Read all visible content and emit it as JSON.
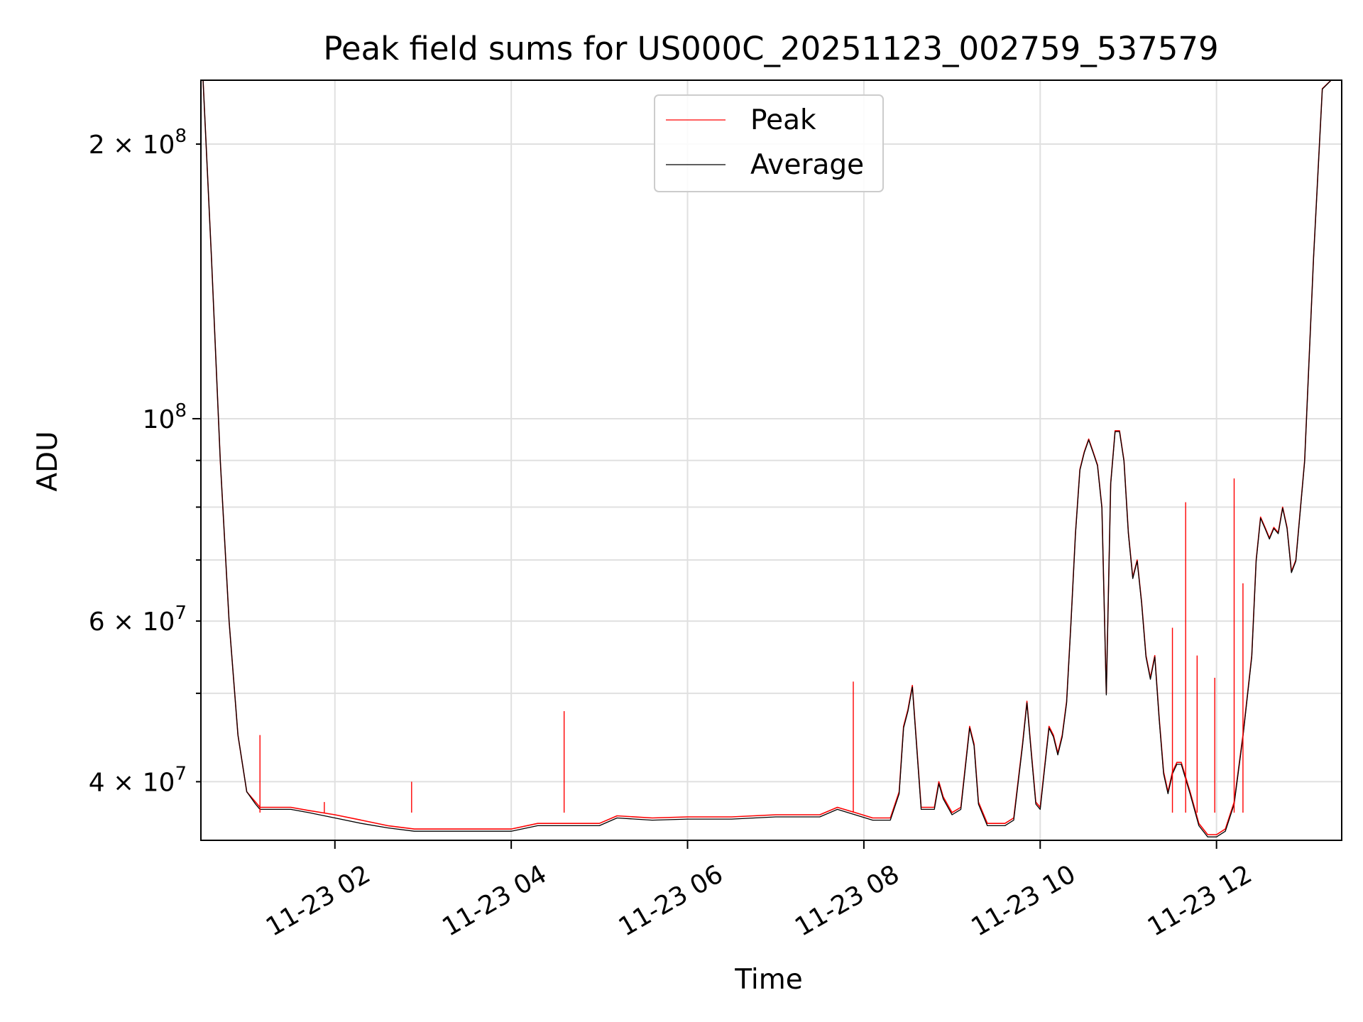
{
  "chart_data": {
    "type": "line",
    "title": "Peak field sums for US000C_20251123_002759_537579",
    "xlabel": "Time",
    "ylabel": "ADU",
    "yscale": "log",
    "ylim": [
      34500000,
      235000000
    ],
    "xlim": [
      0.48,
      13.42
    ],
    "grid": true,
    "legend_position": "top-center",
    "x_ticks": [
      {
        "value": 2,
        "label": "11-23 02"
      },
      {
        "value": 4,
        "label": "11-23 04"
      },
      {
        "value": 6,
        "label": "11-23 06"
      },
      {
        "value": 8,
        "label": "11-23 08"
      },
      {
        "value": 10,
        "label": "11-23 10"
      },
      {
        "value": 12,
        "label": "11-23 12"
      }
    ],
    "y_major_ticks": [
      {
        "value": 100000000,
        "label_base": "10",
        "label_exp": "8"
      }
    ],
    "y_minor_ticks": [
      {
        "value": 40000000,
        "label_base": "4 × 10",
        "label_exp": "7"
      },
      {
        "value": 60000000,
        "label_base": "6 × 10",
        "label_exp": "7"
      },
      {
        "value": 200000000,
        "label_base": "2 × 10",
        "label_exp": "8"
      }
    ],
    "y_minor_unlabeled": [
      50000000,
      70000000,
      80000000,
      90000000
    ],
    "series": [
      {
        "name": "Peak",
        "color": "#ff0000",
        "x": [
          0.5,
          0.6,
          0.7,
          0.8,
          0.9,
          1.0,
          1.1,
          1.15,
          1.3,
          1.5,
          1.7,
          2.0,
          2.3,
          2.6,
          2.9,
          3.2,
          3.5,
          3.8,
          4.0,
          4.3,
          4.6,
          5.0,
          5.2,
          5.6,
          6.0,
          6.5,
          7.0,
          7.5,
          7.7,
          7.9,
          8.1,
          8.3,
          8.4,
          8.45,
          8.5,
          8.55,
          8.65,
          8.8,
          8.85,
          8.9,
          9.0,
          9.1,
          9.2,
          9.25,
          9.3,
          9.4,
          9.5,
          9.6,
          9.7,
          9.8,
          9.85,
          9.9,
          9.95,
          10.0,
          10.1,
          10.15,
          10.2,
          10.25,
          10.3,
          10.35,
          10.4,
          10.45,
          10.5,
          10.55,
          10.6,
          10.65,
          10.7,
          10.75,
          10.8,
          10.85,
          10.9,
          10.95,
          11.0,
          11.05,
          11.1,
          11.15,
          11.2,
          11.25,
          11.3,
          11.35,
          11.4,
          11.45,
          11.5,
          11.55,
          11.6,
          11.7,
          11.8,
          11.9,
          12.0,
          12.1,
          12.2,
          12.3,
          12.4,
          12.45,
          12.5,
          12.55,
          12.6,
          12.65,
          12.7,
          12.75,
          12.8,
          12.85,
          12.9,
          13.0,
          13.1,
          13.2,
          13.3,
          13.4
        ],
        "y": [
          240000000,
          150000000,
          90000000,
          60000000,
          45000000,
          39000000,
          38000000,
          37500000,
          37500000,
          37500000,
          37200000,
          36800000,
          36300000,
          35800000,
          35500000,
          35500000,
          35500000,
          35500000,
          35500000,
          36000000,
          36000000,
          36000000,
          36700000,
          36500000,
          36600000,
          36600000,
          36800000,
          36800000,
          37500000,
          37000000,
          36500000,
          36500000,
          39000000,
          46000000,
          48000000,
          51000000,
          37500000,
          37500000,
          40000000,
          38500000,
          37000000,
          37500000,
          46000000,
          44000000,
          38000000,
          36000000,
          36000000,
          36000000,
          36500000,
          44000000,
          49000000,
          43000000,
          38000000,
          37500000,
          46000000,
          45000000,
          43000000,
          45000000,
          49000000,
          60000000,
          75000000,
          88000000,
          92000000,
          95000000,
          92000000,
          89000000,
          80000000,
          50000000,
          85000000,
          97000000,
          97000000,
          90000000,
          75000000,
          67000000,
          70000000,
          63000000,
          55000000,
          52000000,
          55000000,
          47000000,
          41000000,
          39000000,
          41000000,
          42000000,
          42000000,
          39000000,
          36000000,
          35000000,
          35000000,
          35500000,
          38000000,
          45000000,
          55000000,
          70000000,
          78000000,
          76000000,
          74000000,
          76000000,
          75000000,
          80000000,
          76000000,
          68000000,
          70000000,
          90000000,
          150000000,
          230000000,
          235000000,
          235000000
        ]
      },
      {
        "name": "Average",
        "color": "#000000",
        "x": [
          0.5,
          0.6,
          0.7,
          0.8,
          0.9,
          1.0,
          1.1,
          1.15,
          1.3,
          1.5,
          1.7,
          2.0,
          2.3,
          2.6,
          2.9,
          3.2,
          3.5,
          3.8,
          4.0,
          4.3,
          4.6,
          5.0,
          5.2,
          5.6,
          6.0,
          6.5,
          7.0,
          7.5,
          7.7,
          7.9,
          8.1,
          8.3,
          8.4,
          8.45,
          8.5,
          8.55,
          8.65,
          8.8,
          8.85,
          8.9,
          9.0,
          9.1,
          9.2,
          9.25,
          9.3,
          9.4,
          9.5,
          9.6,
          9.7,
          9.8,
          9.85,
          9.9,
          9.95,
          10.0,
          10.1,
          10.15,
          10.2,
          10.25,
          10.3,
          10.35,
          10.4,
          10.45,
          10.5,
          10.55,
          10.6,
          10.65,
          10.7,
          10.75,
          10.8,
          10.85,
          10.9,
          10.95,
          11.0,
          11.05,
          11.1,
          11.15,
          11.2,
          11.25,
          11.3,
          11.35,
          11.4,
          11.45,
          11.5,
          11.55,
          11.6,
          11.7,
          11.8,
          11.9,
          12.0,
          12.1,
          12.2,
          12.3,
          12.4,
          12.45,
          12.5,
          12.55,
          12.6,
          12.65,
          12.7,
          12.75,
          12.8,
          12.85,
          12.9,
          13.0,
          13.1,
          13.2,
          13.3,
          13.4
        ],
        "y": [
          240000000,
          150000000,
          90000000,
          60000000,
          45000000,
          39000000,
          37800000,
          37300000,
          37300000,
          37300000,
          37000000,
          36500000,
          36000000,
          35600000,
          35300000,
          35300000,
          35300000,
          35300000,
          35300000,
          35800000,
          35800000,
          35800000,
          36500000,
          36300000,
          36400000,
          36400000,
          36600000,
          36600000,
          37300000,
          36800000,
          36300000,
          36300000,
          38800000,
          45800000,
          47800000,
          50800000,
          37300000,
          37300000,
          39800000,
          38300000,
          36800000,
          37300000,
          45800000,
          43800000,
          37800000,
          35800000,
          35800000,
          35800000,
          36300000,
          43800000,
          48800000,
          42800000,
          37800000,
          37300000,
          45800000,
          44800000,
          42800000,
          44800000,
          48800000,
          59800000,
          74800000,
          87800000,
          91800000,
          94800000,
          91800000,
          88800000,
          79800000,
          49800000,
          84800000,
          96800000,
          96800000,
          89800000,
          74800000,
          66800000,
          69800000,
          62800000,
          54800000,
          51800000,
          54800000,
          46800000,
          40800000,
          38800000,
          40800000,
          41800000,
          41800000,
          38800000,
          35800000,
          34800000,
          34800000,
          35300000,
          37800000,
          44800000,
          54800000,
          69800000,
          77800000,
          75800000,
          73800000,
          75800000,
          74800000,
          79800000,
          75800000,
          67800000,
          69800000,
          89800000,
          149800000,
          229800000,
          235000000,
          235000000
        ]
      }
    ],
    "peak_spikes": [
      {
        "x": 1.15,
        "y": 45000000
      },
      {
        "x": 1.88,
        "y": 38000000
      },
      {
        "x": 2.87,
        "y": 40000000
      },
      {
        "x": 4.6,
        "y": 47800000
      },
      {
        "x": 7.88,
        "y": 51500000
      },
      {
        "x": 11.5,
        "y": 59000000
      },
      {
        "x": 11.65,
        "y": 81000000
      },
      {
        "x": 11.78,
        "y": 55000000
      },
      {
        "x": 11.98,
        "y": 52000000
      },
      {
        "x": 12.2,
        "y": 86000000
      },
      {
        "x": 12.3,
        "y": 66000000
      }
    ]
  }
}
